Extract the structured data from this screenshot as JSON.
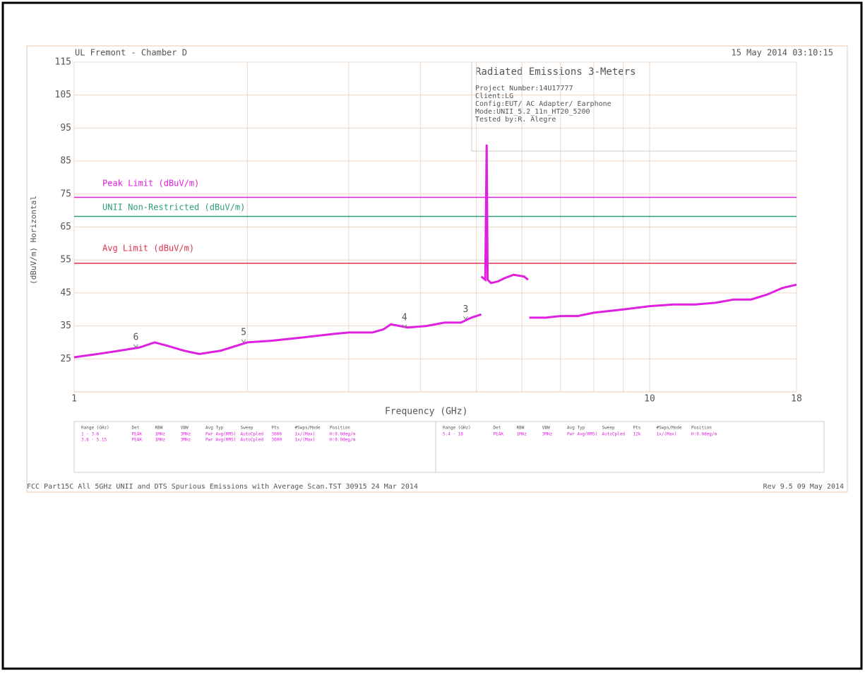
{
  "chart_data": {
    "type": "line",
    "title": "UL Fremont - Chamber D",
    "timestamp": "15 May 2014   03:10:15",
    "info_box": {
      "title": "Radiated Emissions 3-Meters",
      "lines": [
        "Project Number:14U17777",
        "Client:LG",
        "Config:EUT/ AC Adapter/ Earphone",
        "Mode:UNII_5.2_11n_HT20_5200",
        "Tested by:R. Alegre"
      ]
    },
    "x_label": "Frequency (GHz)",
    "y_label": "(dBuV/m) Horizontal",
    "log_x": true,
    "grid": true,
    "xlim": [
      1,
      18
    ],
    "xticks": [
      1,
      10,
      18
    ],
    "xgrid": [
      2,
      3,
      4,
      5,
      6,
      7,
      8,
      9
    ],
    "ylim": [
      15,
      115
    ],
    "yticks": [
      115,
      105,
      95,
      85,
      75,
      65,
      55,
      45,
      35,
      25
    ],
    "limits": [
      {
        "name": "Peak Limit (dBuV/m)",
        "color": "#e020e0",
        "value": 74
      },
      {
        "name": "UNII Non-Restricted (dBuV/m)",
        "color": "#2e9e7a",
        "value": 68.2
      },
      {
        "name": "Avg Limit (dBuV/m)",
        "color": "#e03050",
        "value": 54
      }
    ],
    "series": [
      {
        "color": "#e020e0",
        "x": [
          1,
          1.1,
          1.2,
          1.3,
          1.38,
          1.45,
          1.55,
          1.65,
          1.8,
          2,
          2.2,
          2.5,
          2.8,
          3,
          3.3,
          3.45,
          3.55,
          3.8,
          4.1,
          4.4,
          4.7,
          4.9,
          5.1,
          null,
          5.1,
          5.18,
          5.21,
          5.23,
          5.3,
          5.45,
          5.6,
          5.8,
          6.05,
          6.15,
          null,
          6.18,
          6.6,
          7,
          7.5,
          8,
          9,
          10,
          11,
          12,
          13,
          14,
          15,
          16,
          17,
          18
        ],
        "values": [
          25.5,
          26.5,
          27.5,
          28.5,
          30,
          29,
          27.5,
          26.5,
          27.5,
          30,
          30.5,
          31.5,
          32.5,
          33,
          33,
          34,
          35.5,
          34.5,
          35,
          36,
          36,
          37.5,
          38.5,
          null,
          50,
          49,
          90,
          49,
          48,
          48.5,
          49.5,
          50.5,
          50,
          49,
          null,
          37.5,
          37.5,
          38,
          38,
          39,
          40,
          41,
          41.5,
          41.5,
          42,
          43,
          43,
          44.5,
          46.5,
          47.5
        ]
      }
    ],
    "markers": [
      {
        "label": "6",
        "x": 1.28,
        "y": 28.5
      },
      {
        "label": "5",
        "x": 1.97,
        "y": 30
      },
      {
        "label": "4",
        "x": 3.75,
        "y": 34.5
      },
      {
        "label": "3",
        "x": 4.79,
        "y": 37
      }
    ],
    "table_header": [
      "Range (GHz)",
      "Det",
      "RBW",
      "VBW",
      "Avg Typ",
      "Sweep",
      "Pts",
      "#Swps/Mode",
      "Position"
    ],
    "table_left": [
      [
        "1 - 3.6",
        "PEAK",
        "1MHz",
        "3MHz",
        "Pwr Avg(RMS)",
        "AutoCpled",
        "3600",
        "1x/(Max)",
        "H:0.0deg/m"
      ],
      [
        "3.6 - 5.15",
        "PEAK",
        "1MHz",
        "3MHz",
        "Pwr Avg(RMS)",
        "AutoCpled",
        "3600",
        "1x/(Max)",
        "H:0.0deg/m"
      ]
    ],
    "table_right": [
      [
        "5.4 - 18",
        "PEAK",
        "1MHz",
        "3MHz",
        "Pwr Avg(RMS)",
        "AutoCpled",
        "12k",
        "1x/(Max)",
        "H:0.0deg/m"
      ]
    ],
    "footer_left": "FCC Part15C All 5GHz UNII and DTS Spurious Emissions with Average Scan.TST 30915 24 Mar 2014",
    "footer_right": "Rev 9.5 09 May 2014"
  }
}
